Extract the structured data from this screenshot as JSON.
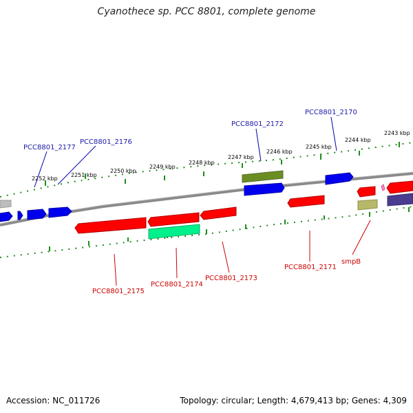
{
  "title": "Cyanothece sp. PCC 8801, complete genome",
  "footer": {
    "accession": "Accession: NC_011726",
    "summary": "Topology: circular; Length: 4,679,413 bp; Genes: 4,309"
  },
  "scale_labels": [
    "2252 kbp",
    "2251 kbp",
    "2250 kbp",
    "2249 kbp",
    "2248 kbp",
    "2247 kbp",
    "2246 kbp",
    "2245 kbp",
    "2244 kbp",
    "2243 kbp"
  ],
  "gene_labels": {
    "forward": [
      "PCC8801_2177",
      "PCC8801_2176",
      "PCC8801_2172",
      "PCC8801_2170"
    ],
    "reverse": [
      "PCC8801_2175",
      "PCC8801_2174",
      "PCC8801_2173",
      "PCC8801_2171",
      "smpB"
    ]
  },
  "colors": {
    "forward_label": "#1a1aa8",
    "reverse_label": "#cc0000",
    "backbone": "#808080",
    "ticks": "#1e8c1e"
  }
}
